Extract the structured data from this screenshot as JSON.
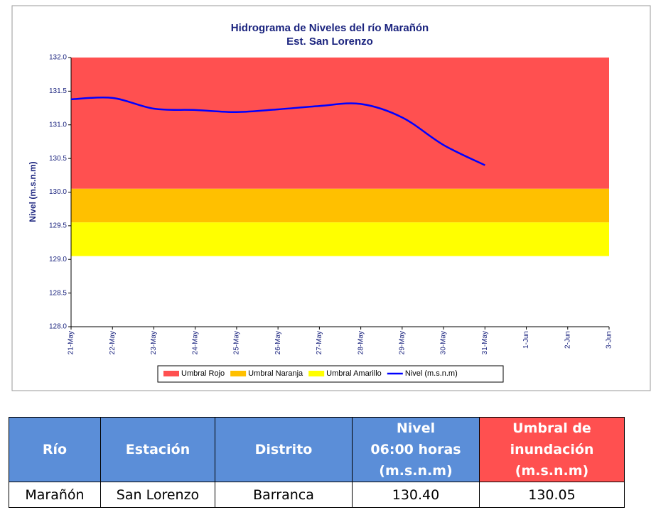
{
  "chart_data": {
    "type": "line",
    "title": "Hidrograma de Niveles del río Marañón",
    "subtitle": "Est. San Lorenzo",
    "y_label": "Nivel (m.s.n.m)",
    "categories": [
      "21-May",
      "22-May",
      "23-May",
      "24-May",
      "25-May",
      "26-May",
      "27-May",
      "28-May",
      "29-May",
      "30-May",
      "31-May",
      "1-Jun",
      "2-Jun",
      "3-Jun"
    ],
    "bands": [
      {
        "name": "Umbral Rojo",
        "color": "#ff5050",
        "from": 130.05,
        "to": 132.0
      },
      {
        "name": "Umbral Naranja",
        "color": "#ffc000",
        "from": 129.55,
        "to": 130.05
      },
      {
        "name": "Umbral Amarillo",
        "color": "#ffff00",
        "from": 129.05,
        "to": 129.55
      }
    ],
    "series": [
      {
        "name": "Nivel (m.s.n.m)",
        "color": "#0000ff",
        "values": [
          131.38,
          131.4,
          131.24,
          131.22,
          131.19,
          131.23,
          131.28,
          131.31,
          131.11,
          130.7,
          130.4,
          null,
          null,
          null
        ]
      }
    ],
    "ylim": [
      128.0,
      132.0
    ],
    "yticks": [
      {
        "value": 128,
        "label": "128.0"
      },
      {
        "value": 128.5,
        "label": "128.5"
      },
      {
        "value": 129,
        "label": "129.0"
      },
      {
        "value": 129.5,
        "label": "129.5"
      },
      {
        "value": 130,
        "label": "130.0"
      },
      {
        "value": 130.5,
        "label": "130.5"
      },
      {
        "value": 131,
        "label": "131.0"
      },
      {
        "value": 131.5,
        "label": "131.5"
      },
      {
        "value": 132,
        "label": "132.0"
      }
    ],
    "grid": false
  },
  "table": {
    "header": [
      [
        "Río"
      ],
      [
        "Estación"
      ],
      [
        "Distrito"
      ],
      [
        "Nivel",
        "06:00 horas",
        "(m.s.n.m)"
      ],
      [
        "Umbral de",
        "inundación",
        "(m.s.n.m)"
      ]
    ],
    "rows": [
      [
        "Marañón",
        "San Lorenzo",
        "Barranca",
        "130.40",
        "130.05"
      ]
    ]
  }
}
